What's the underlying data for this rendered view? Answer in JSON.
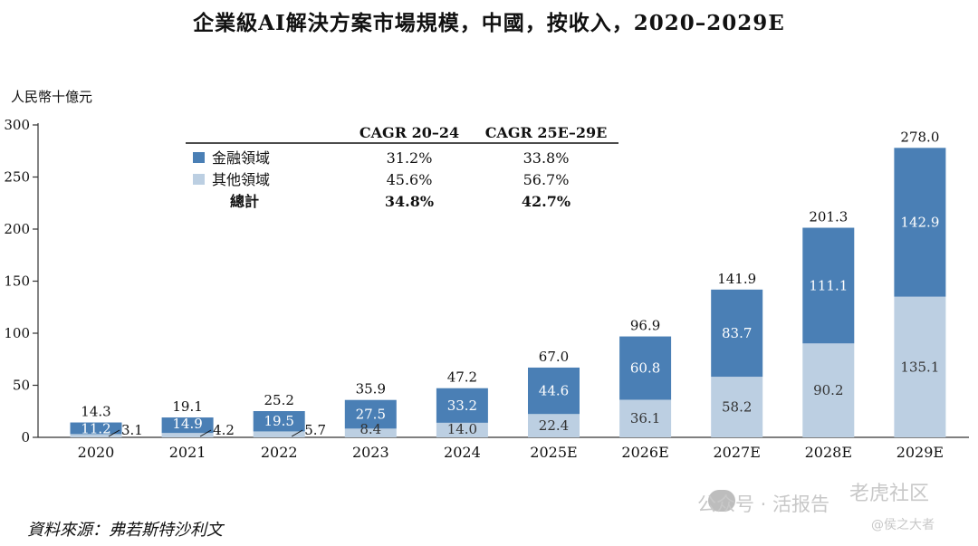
{
  "title": "企業級AI解決方案市場規模，中國，按收入，2020–2029E",
  "unit_label": "人民幣十億元",
  "source": "資料來源：弗若斯特沙利文",
  "watermarks": [
    "公众号 · 活报告",
    "老虎社区",
    "@侯之大者"
  ],
  "colors": {
    "finance": "#4a7fb5",
    "other": "#bccfe2",
    "axis": "#333333"
  },
  "cagr_table": {
    "headers": [
      "CAGR 20–24",
      "CAGR 25E–29E"
    ],
    "rows": [
      {
        "label": "金融領域",
        "values": [
          "31.2%",
          "33.8%"
        ],
        "bold": false
      },
      {
        "label": "其他領域",
        "values": [
          "45.6%",
          "56.7%"
        ],
        "bold": false
      },
      {
        "label": "總計",
        "values": [
          "34.8%",
          "42.7%"
        ],
        "bold": true
      }
    ]
  },
  "chart_data": {
    "type": "bar",
    "stacked": true,
    "title": "企業級AI解決方案市場規模，中國，按收入，2020–2029E",
    "ylabel": "人民幣十億元",
    "ylim": [
      0,
      300
    ],
    "yticks": [
      0,
      50,
      100,
      150,
      200,
      250,
      300
    ],
    "categories": [
      "2020",
      "2021",
      "2022",
      "2023",
      "2024",
      "2025E",
      "2026E",
      "2027E",
      "2028E",
      "2029E"
    ],
    "series": [
      {
        "name": "其他領域",
        "values": [
          3.1,
          4.2,
          5.7,
          8.4,
          14.0,
          22.4,
          36.1,
          58.2,
          90.2,
          135.1
        ]
      },
      {
        "name": "金融領域",
        "values": [
          11.2,
          14.9,
          19.5,
          27.5,
          33.2,
          44.6,
          60.8,
          83.7,
          111.1,
          142.9
        ]
      }
    ],
    "totals": [
      14.3,
      19.1,
      25.2,
      35.9,
      47.2,
      67.0,
      96.9,
      141.9,
      201.3,
      278.0
    ],
    "value_labels": {
      "other": [
        "3.1",
        "4.2",
        "5.7",
        "8.4",
        "14.0",
        "22.4",
        "36.1",
        "58.2",
        "90.2",
        "135.1"
      ],
      "finance": [
        "11.2",
        "14.9",
        "19.5",
        "27.5",
        "33.2",
        "44.6",
        "60.8",
        "83.7",
        "111.1",
        "142.9"
      ],
      "totals": [
        "14.3",
        "19.1",
        "25.2",
        "35.9",
        "47.2",
        "67.0",
        "96.9",
        "141.9",
        "201.3",
        "278.0"
      ]
    }
  }
}
